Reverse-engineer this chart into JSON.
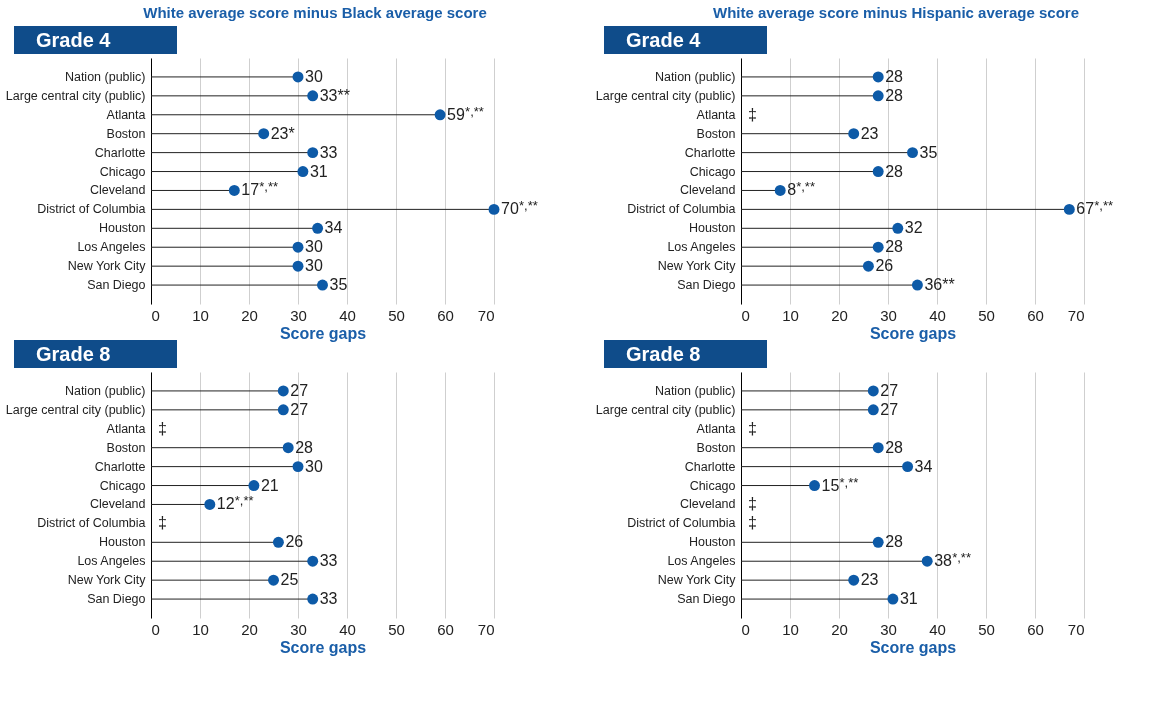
{
  "chart_data": [
    {
      "type": "lollipop",
      "orientation": "horizontal",
      "title": "White average score minus Black average score",
      "subtitle": "Grade 4",
      "xlabel": "Score gaps",
      "categories": [
        "Nation (public)",
        "Large central city (public)",
        "Atlanta",
        "Boston",
        "Charlotte",
        "Chicago",
        "Cleveland",
        "District of Columbia",
        "Houston",
        "Los Angeles",
        "New York City",
        "San Diego"
      ],
      "values": [
        30,
        33,
        59,
        23,
        33,
        31,
        17,
        70,
        34,
        30,
        30,
        35
      ],
      "value_labels": [
        "30",
        "33**",
        "59$^{*,**}$",
        "23*",
        "33",
        "31",
        "17$^{*,**}$",
        "70$^{*,**}$",
        "34",
        "30",
        "30",
        "35"
      ],
      "color": "#0d5aa7",
      "marker": "circle",
      "xlim": [
        0,
        70
      ],
      "xticks": [
        0,
        10,
        20,
        30,
        40,
        50,
        60,
        70
      ],
      "grid": "x"
    },
    {
      "type": "lollipop",
      "orientation": "horizontal",
      "title": "White average score minus Hispanic average score",
      "subtitle": "Grade 4",
      "xlabel": "Score gaps",
      "categories": [
        "Nation (public)",
        "Large central city (public)",
        "Atlanta",
        "Boston",
        "Charlotte",
        "Chicago",
        "Cleveland",
        "District of Columbia",
        "Houston",
        "Los Angeles",
        "New York City",
        "San Diego"
      ],
      "values": [
        28,
        28,
        null,
        23,
        35,
        28,
        8,
        67,
        32,
        28,
        26,
        36
      ],
      "value_labels": [
        "28",
        "28",
        "‡",
        "23",
        "35",
        "28",
        "8$^{*,**}$",
        "67$^{*,**}$",
        "32",
        "28",
        "26",
        "36**"
      ],
      "color": "#0d5aa7",
      "marker": "circle",
      "xlim": [
        0,
        70
      ],
      "xticks": [
        0,
        10,
        20,
        30,
        40,
        50,
        60,
        70
      ],
      "grid": "x"
    },
    {
      "type": "lollipop",
      "orientation": "horizontal",
      "subtitle": "Grade 8",
      "xlabel": "Score gaps",
      "categories": [
        "Nation (public)",
        "Large central city (public)",
        "Atlanta",
        "Boston",
        "Charlotte",
        "Chicago",
        "Cleveland",
        "District of Columbia",
        "Houston",
        "Los Angeles",
        "New York City",
        "San Diego"
      ],
      "values": [
        27,
        27,
        null,
        28,
        30,
        21,
        12,
        null,
        26,
        33,
        25,
        33
      ],
      "value_labels": [
        "27",
        "27",
        "‡",
        "28",
        "30",
        "21",
        "12$^{*,**}$",
        "‡",
        "26",
        "33",
        "25",
        "33"
      ],
      "color": "#0d5aa7",
      "marker": "circle",
      "xlim": [
        0,
        70
      ],
      "xticks": [
        0,
        10,
        20,
        30,
        40,
        50,
        60,
        70
      ],
      "grid": "x"
    },
    {
      "type": "lollipop",
      "orientation": "horizontal",
      "subtitle": "Grade 8",
      "xlabel": "Score gaps",
      "categories": [
        "Nation (public)",
        "Large central city (public)",
        "Atlanta",
        "Boston",
        "Charlotte",
        "Chicago",
        "Cleveland",
        "District of Columbia",
        "Houston",
        "Los Angeles",
        "New York City",
        "San Diego"
      ],
      "values": [
        27,
        27,
        null,
        28,
        34,
        15,
        null,
        null,
        28,
        38,
        23,
        31
      ],
      "value_labels": [
        "27",
        "27",
        "‡",
        "28",
        "34",
        "15$^{*,**}$",
        "‡",
        "‡",
        "28",
        "38$^{*,**}$",
        "23",
        "31"
      ],
      "color": "#0d5aa7",
      "marker": "circle",
      "xlim": [
        0,
        70
      ],
      "xticks": [
        0,
        10,
        20,
        30,
        40,
        50,
        60,
        70
      ],
      "grid": "x"
    }
  ]
}
